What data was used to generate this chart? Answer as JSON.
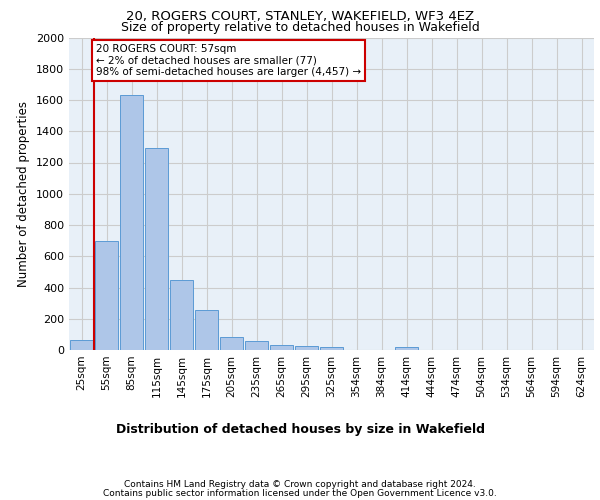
{
  "title_line1": "20, ROGERS COURT, STANLEY, WAKEFIELD, WF3 4EZ",
  "title_line2": "Size of property relative to detached houses in Wakefield",
  "xlabel": "Distribution of detached houses by size in Wakefield",
  "ylabel": "Number of detached properties",
  "footer_line1": "Contains HM Land Registry data © Crown copyright and database right 2024.",
  "footer_line2": "Contains public sector information licensed under the Open Government Licence v3.0.",
  "annotation_title": "20 ROGERS COURT: 57sqm",
  "annotation_line2": "← 2% of detached houses are smaller (77)",
  "annotation_line3": "98% of semi-detached houses are larger (4,457) →",
  "bar_labels": [
    "25sqm",
    "55sqm",
    "85sqm",
    "115sqm",
    "145sqm",
    "175sqm",
    "205sqm",
    "235sqm",
    "265sqm",
    "295sqm",
    "325sqm",
    "354sqm",
    "384sqm",
    "414sqm",
    "444sqm",
    "474sqm",
    "504sqm",
    "534sqm",
    "564sqm",
    "594sqm",
    "624sqm"
  ],
  "bar_values": [
    65,
    700,
    1630,
    1290,
    445,
    255,
    85,
    55,
    35,
    28,
    20,
    0,
    0,
    20,
    0,
    0,
    0,
    0,
    0,
    0,
    0
  ],
  "bar_color": "#aec6e8",
  "bar_edge_color": "#5b9bd5",
  "marker_color": "#cc0000",
  "ylim": [
    0,
    2000
  ],
  "yticks": [
    0,
    200,
    400,
    600,
    800,
    1000,
    1200,
    1400,
    1600,
    1800,
    2000
  ],
  "grid_color": "#cccccc",
  "axes_background": "#e8f0f8",
  "title1_fontsize": 9.5,
  "title2_fontsize": 9.0,
  "ylabel_fontsize": 8.5,
  "xlabel_fontsize": 9.0,
  "tick_fontsize": 7.5,
  "footer_fontsize": 6.5,
  "ann_fontsize": 7.5
}
